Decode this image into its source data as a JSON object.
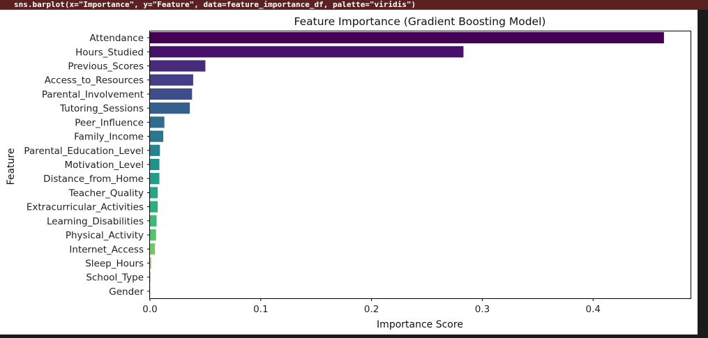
{
  "code_line": "sns.barplot(x=\"Importance\", y=\"Feature\", data=feature_importance_df, palette=\"viridis\")",
  "chart_data": {
    "type": "bar",
    "orientation": "horizontal",
    "title": "Feature Importance (Gradient Boosting Model)",
    "xlabel": "Importance Score",
    "ylabel": "Feature",
    "xlim": [
      0,
      0.488
    ],
    "xticks": [
      "0.0",
      "0.1",
      "0.2",
      "0.3",
      "0.4"
    ],
    "grid": false,
    "palette": "viridis",
    "categories": [
      "Attendance",
      "Hours_Studied",
      "Previous_Scores",
      "Access_to_Resources",
      "Parental_Involvement",
      "Tutoring_Sessions",
      "Peer_Influence",
      "Family_Income",
      "Parental_Education_Level",
      "Motivation_Level",
      "Distance_from_Home",
      "Teacher_Quality",
      "Extracurricular_Activities",
      "Learning_Disabilities",
      "Physical_Activity",
      "Internet_Access",
      "Sleep_Hours",
      "School_Type",
      "Gender"
    ],
    "values": [
      0.464,
      0.283,
      0.05,
      0.039,
      0.038,
      0.036,
      0.013,
      0.012,
      0.009,
      0.0085,
      0.0085,
      0.007,
      0.007,
      0.006,
      0.0055,
      0.0045,
      0.001,
      0.0005,
      0.0003
    ],
    "colors": [
      "#440154",
      "#46106b",
      "#472a7a",
      "#433e85",
      "#3d4e8a",
      "#355f8d",
      "#2f6c8e",
      "#2a788e",
      "#25848e",
      "#21918c",
      "#1f9e89",
      "#22a884",
      "#2ab07f",
      "#3bbb75",
      "#52c569",
      "#6ccd5a",
      "#89d548",
      "#a8db34",
      "#c5e021"
    ]
  }
}
